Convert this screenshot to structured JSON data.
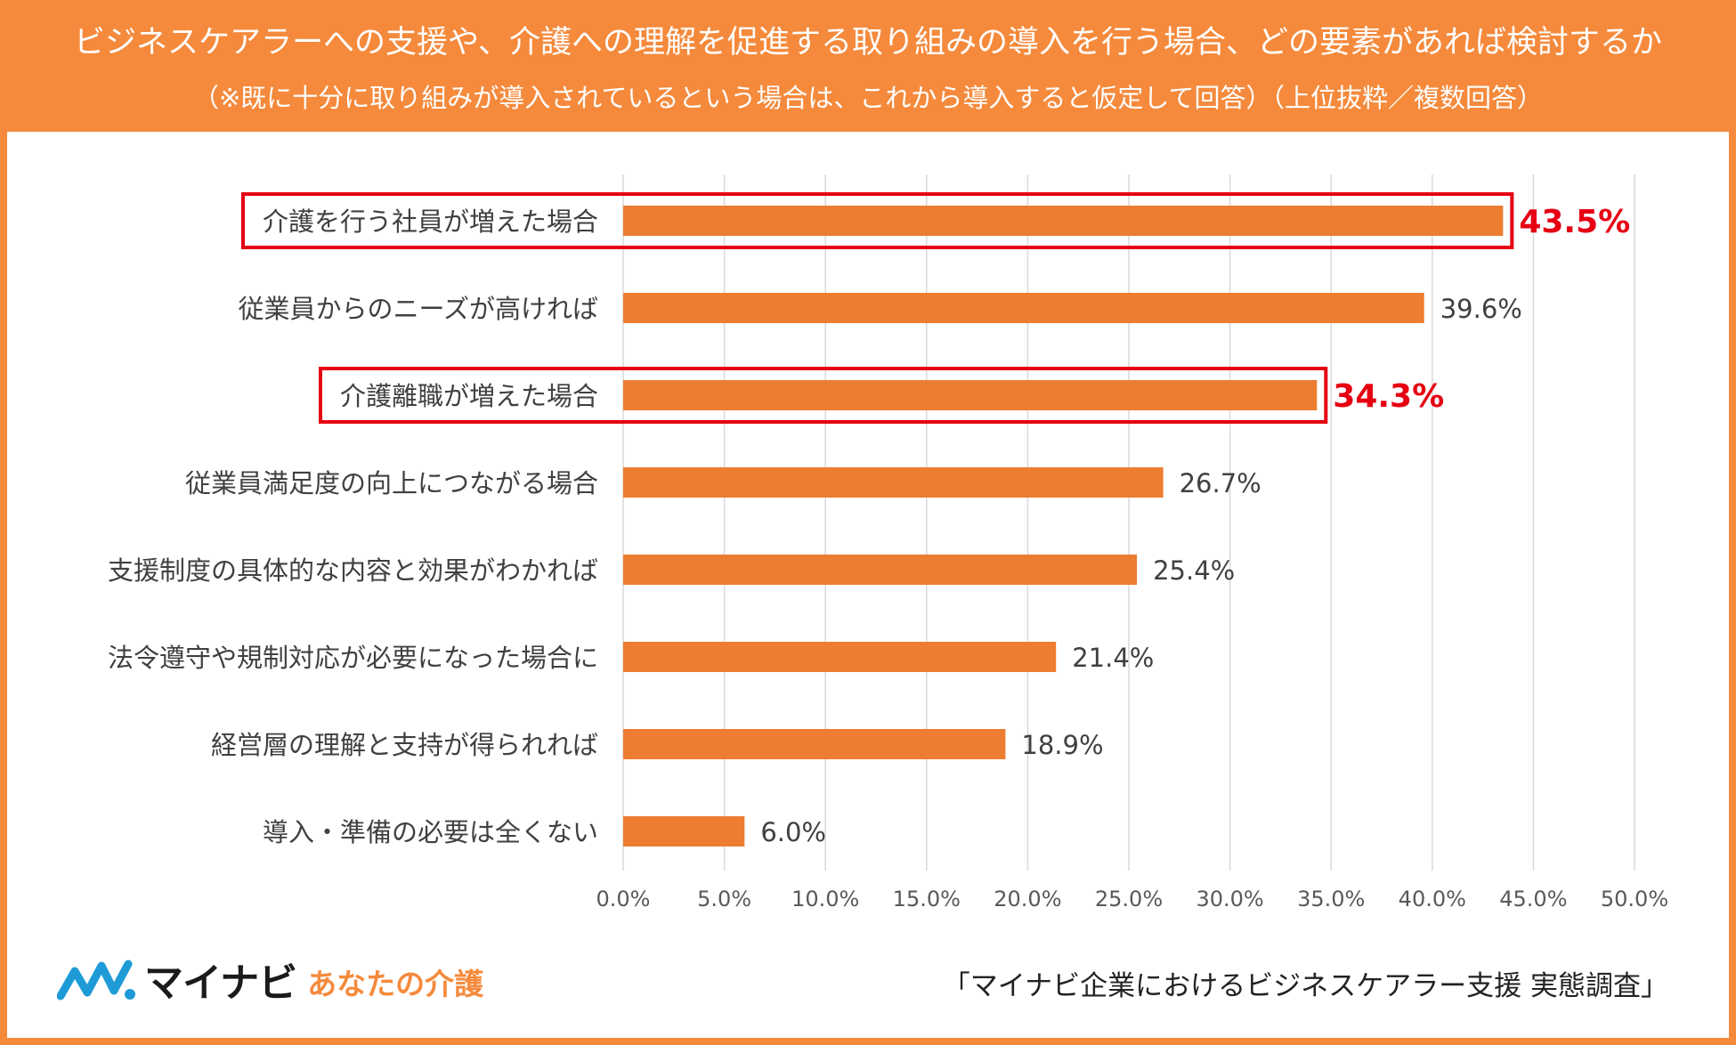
{
  "header": {
    "title": "ビジネスケアラーへの支援や、介護への理解を促進する取り組みの導入を行う場合、どの要素があれば検討するか",
    "subtitle": "（※既に十分に取り組みが導入されているという場合は、これから導入すると仮定して回答）（上位抜粋／複数回答）"
  },
  "colors": {
    "background": "#F58A3C",
    "bar": "#ED7D31",
    "highlight": "#E60012",
    "label_text": "#404040",
    "grid": "#D9D9D9"
  },
  "chart_data": {
    "type": "bar",
    "orientation": "horizontal",
    "categories": [
      "介護を行う社員が増えた場合",
      "従業員からのニーズが高ければ",
      "介護離職が増えた場合",
      "従業員満足度の向上につながる場合",
      "支援制度の具体的な内容と効果がわかれば",
      "法令遵守や規制対応が必要になった場合に",
      "経営層の理解と支持が得られれば",
      "導入・準備の必要は全くない"
    ],
    "values": [
      43.5,
      39.6,
      34.3,
      26.7,
      25.4,
      21.4,
      18.9,
      6.0
    ],
    "value_labels": [
      "43.5%",
      "39.6%",
      "34.3%",
      "26.7%",
      "25.4%",
      "21.4%",
      "18.9%",
      "6.0%"
    ],
    "highlighted": [
      true,
      false,
      true,
      false,
      false,
      false,
      false,
      false
    ],
    "xlim": [
      0,
      50
    ],
    "x_ticks": [
      0,
      5,
      10,
      15,
      20,
      25,
      30,
      35,
      40,
      45,
      50
    ],
    "x_tick_labels": [
      "0.0%",
      "5.0%",
      "10.0%",
      "15.0%",
      "20.0%",
      "25.0%",
      "30.0%",
      "35.0%",
      "40.0%",
      "45.0%",
      "50.0%"
    ],
    "grid": true
  },
  "footer": {
    "logo_main": "マイナビ",
    "logo_sub": "あなたの介護",
    "logo_icon": "mynavi-logo-icon",
    "source": "「マイナビ企業におけるビジネスケアラー支援 実態調査」"
  }
}
